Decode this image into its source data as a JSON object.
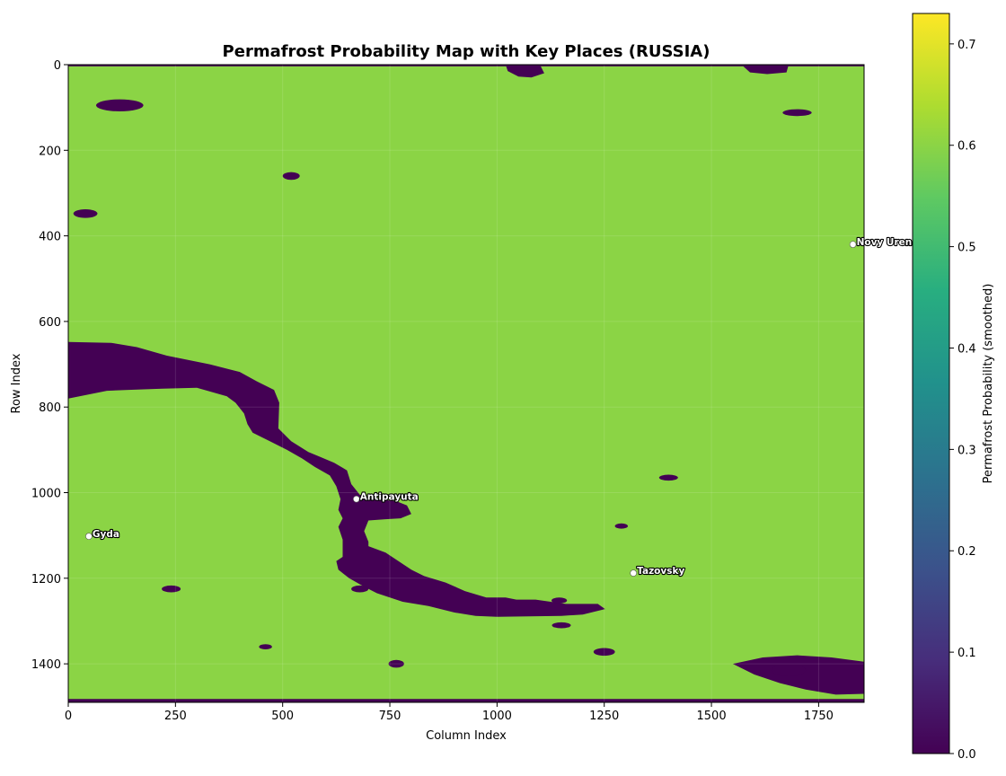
{
  "chart_data": {
    "type": "heatmap",
    "title": "Permafrost Probability Map with Key Places (RUSSIA)",
    "xlabel": "Column Index",
    "ylabel": "Row Index",
    "xlim": [
      0,
      1856
    ],
    "ylim": [
      1490,
      0
    ],
    "xticks": [
      0,
      250,
      500,
      750,
      1000,
      1250,
      1500,
      1750
    ],
    "yticks": [
      0,
      200,
      400,
      600,
      800,
      1000,
      1200,
      1400
    ],
    "grid": true,
    "colorbar": {
      "label": "Permafrost Probability (smoothed)",
      "range": [
        0,
        0.73
      ],
      "ticks": [
        0.0,
        0.1,
        0.2,
        0.3,
        0.4,
        0.5,
        0.6,
        0.7
      ],
      "tick_labels": [
        "0.0",
        "0.1",
        "0.2",
        "0.3",
        "0.4",
        "0.5",
        "0.6",
        "0.7"
      ],
      "colormap": "viridis"
    },
    "places": [
      {
        "name": "Novy Uren",
        "col": 1830,
        "row": 420
      },
      {
        "name": "Antipayuta",
        "col": 672,
        "row": 1015
      },
      {
        "name": "Gyda",
        "col": 48,
        "row": 1102
      },
      {
        "name": "Tazovsky",
        "col": 1318,
        "row": 1188
      }
    ],
    "background_value": 0.6,
    "water_value": 0.0,
    "water_bodies": [
      {
        "points": [
          [
            0,
            648
          ],
          [
            100,
            650
          ],
          [
            160,
            660
          ],
          [
            230,
            680
          ],
          [
            330,
            700
          ],
          [
            400,
            718
          ],
          [
            440,
            740
          ],
          [
            480,
            760
          ],
          [
            492,
            790
          ],
          [
            490,
            850
          ],
          [
            520,
            880
          ],
          [
            560,
            905
          ],
          [
            620,
            930
          ],
          [
            650,
            948
          ],
          [
            660,
            980
          ],
          [
            680,
            1005
          ],
          [
            720,
            1015
          ],
          [
            765,
            1020
          ],
          [
            790,
            1030
          ],
          [
            800,
            1050
          ],
          [
            775,
            1060
          ],
          [
            740,
            1062
          ],
          [
            700,
            1065
          ],
          [
            690,
            1090
          ],
          [
            700,
            1115
          ],
          [
            700,
            1125
          ],
          [
            740,
            1140
          ],
          [
            770,
            1160
          ],
          [
            800,
            1180
          ],
          [
            830,
            1195
          ],
          [
            880,
            1210
          ],
          [
            925,
            1230
          ],
          [
            975,
            1245
          ],
          [
            1020,
            1245
          ],
          [
            1045,
            1250
          ],
          [
            1090,
            1250
          ],
          [
            1160,
            1260
          ],
          [
            1235,
            1260
          ],
          [
            1252,
            1272
          ],
          [
            1200,
            1285
          ],
          [
            1150,
            1288
          ],
          [
            1000,
            1290
          ],
          [
            950,
            1288
          ],
          [
            900,
            1280
          ],
          [
            840,
            1265
          ],
          [
            780,
            1255
          ],
          [
            720,
            1235
          ],
          [
            690,
            1220
          ],
          [
            655,
            1200
          ],
          [
            630,
            1180
          ],
          [
            625,
            1160
          ],
          [
            640,
            1150
          ],
          [
            640,
            1110
          ],
          [
            630,
            1080
          ],
          [
            640,
            1060
          ],
          [
            630,
            1040
          ],
          [
            635,
            1015
          ],
          [
            625,
            985
          ],
          [
            610,
            960
          ],
          [
            575,
            940
          ],
          [
            545,
            920
          ],
          [
            510,
            900
          ],
          [
            470,
            880
          ],
          [
            430,
            860
          ],
          [
            418,
            840
          ],
          [
            410,
            815
          ],
          [
            390,
            790
          ],
          [
            370,
            775
          ],
          [
            300,
            755
          ],
          [
            220,
            757
          ],
          [
            140,
            760
          ],
          [
            90,
            762
          ],
          [
            0,
            780
          ]
        ]
      },
      {
        "points": [
          [
            1550,
            1400
          ],
          [
            1620,
            1385
          ],
          [
            1700,
            1380
          ],
          [
            1780,
            1385
          ],
          [
            1856,
            1395
          ],
          [
            1856,
            1470
          ],
          [
            1790,
            1472
          ],
          [
            1720,
            1460
          ],
          [
            1660,
            1445
          ],
          [
            1600,
            1425
          ]
        ]
      },
      {
        "points": [
          [
            1020,
            0
          ],
          [
            1100,
            0
          ],
          [
            1110,
            20
          ],
          [
            1080,
            30
          ],
          [
            1050,
            28
          ],
          [
            1025,
            15
          ]
        ]
      },
      {
        "points": [
          [
            1570,
            0
          ],
          [
            1680,
            0
          ],
          [
            1675,
            18
          ],
          [
            1630,
            22
          ],
          [
            1590,
            18
          ]
        ]
      },
      {
        "points": [
          [
            0,
            1482
          ],
          [
            1856,
            1482
          ],
          [
            1856,
            1490
          ],
          [
            0,
            1490
          ]
        ]
      },
      {
        "points": [
          [
            0,
            0
          ],
          [
            1856,
            0
          ],
          [
            1856,
            4
          ],
          [
            0,
            4
          ]
        ]
      }
    ],
    "lakes": [
      {
        "col": 120,
        "row": 95,
        "rw": 55,
        "rh": 14
      },
      {
        "col": 40,
        "row": 348,
        "rw": 28,
        "rh": 10
      },
      {
        "col": 520,
        "row": 260,
        "rw": 20,
        "rh": 9
      },
      {
        "col": 680,
        "row": 1225,
        "rw": 20,
        "rh": 8
      },
      {
        "col": 1145,
        "row": 1252,
        "rw": 18,
        "rh": 7
      },
      {
        "col": 1700,
        "row": 112,
        "rw": 34,
        "rh": 8
      },
      {
        "col": 1680,
        "row": 1415,
        "rw": 40,
        "rh": 14
      },
      {
        "col": 1250,
        "row": 1372,
        "rw": 25,
        "rh": 9
      },
      {
        "col": 1150,
        "row": 1310,
        "rw": 22,
        "rh": 7
      },
      {
        "col": 765,
        "row": 1400,
        "rw": 18,
        "rh": 9
      },
      {
        "col": 240,
        "row": 1225,
        "rw": 22,
        "rh": 8
      },
      {
        "col": 460,
        "row": 1360,
        "rw": 15,
        "rh": 6
      },
      {
        "col": 1400,
        "row": 965,
        "rw": 22,
        "rh": 7
      },
      {
        "col": 1290,
        "row": 1078,
        "rw": 15,
        "rh": 6
      }
    ]
  }
}
